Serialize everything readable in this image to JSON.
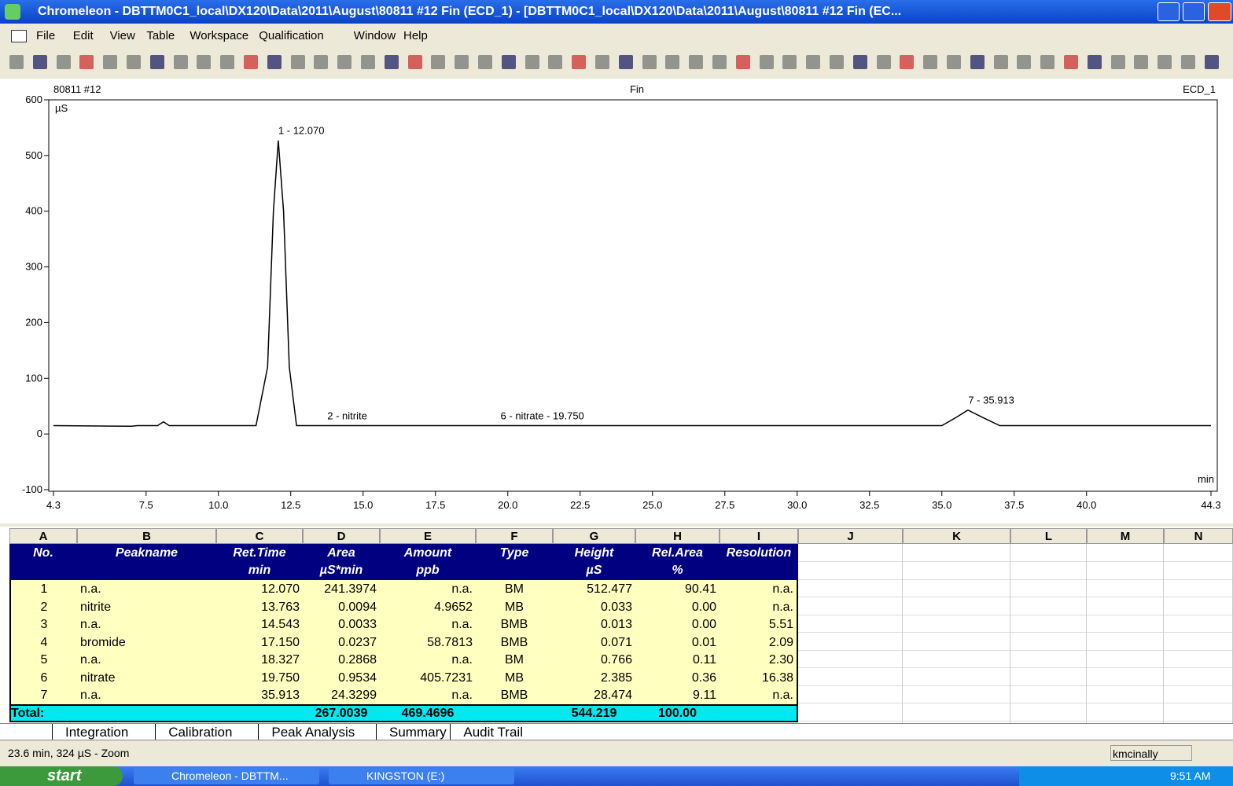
{
  "window": {
    "title": "Chromeleon - DBTTM0C1_local\\DX120\\Data\\2011\\August\\80811 #12 Fin (ECD_1) - [DBTTM0C1_local\\DX120\\Data\\2011\\August\\80811 #12 Fin (EC...",
    "menu": [
      "File",
      "Edit",
      "View",
      "Table",
      "Workspace",
      "Qualification",
      "Window",
      "Help"
    ]
  },
  "chromatogram": {
    "sample": "80811 #12",
    "program": "Fin",
    "channel": "ECD_1",
    "y_unit": "µS",
    "x_unit": "min",
    "xlim": [
      4.3,
      44.3
    ],
    "xticks": [
      4.3,
      7.5,
      {
        "value": 10,
        "label": "10.0"
      },
      12.5,
      {
        "value": 15,
        "label": "15.0"
      },
      17.5,
      {
        "value": 20,
        "label": "20.0"
      },
      22.5,
      {
        "value": 25,
        "label": "25.0"
      },
      27.5,
      {
        "value": 30,
        "label": "30.0"
      },
      32.5,
      {
        "value": 35,
        "label": "35.0"
      },
      37.5,
      {
        "value": 40,
        "label": "40.0"
      },
      44.3
    ],
    "ylim": [
      -100,
      600
    ],
    "yticks": [
      -100,
      0,
      100,
      200,
      300,
      400,
      500,
      600
    ],
    "trace": {
      "x": [
        4.3,
        6.8,
        7.0,
        7.2,
        7.9,
        8.1,
        8.3,
        11.3,
        11.7,
        11.9,
        12.07,
        12.25,
        12.45,
        12.7,
        35.0,
        35.5,
        35.9,
        36.4,
        37.0,
        44.3
      ],
      "y": [
        15,
        14,
        14,
        15,
        15,
        22,
        15,
        15,
        120,
        400,
        527,
        400,
        120,
        15,
        15,
        30,
        43,
        30,
        15,
        15
      ]
    },
    "peak_labels": [
      {
        "text": "1 - 12.070",
        "x": 12.07,
        "y": 527
      },
      {
        "text": "2 - nitrite",
        "x": 13.763,
        "y": 15
      },
      {
        "text": "6 - nitrate - 19.750",
        "x": 19.75,
        "y": 15
      },
      {
        "text": "7 - 35.913",
        "x": 35.913,
        "y": 43
      }
    ]
  },
  "table": {
    "columns": [
      "A",
      "B",
      "C",
      "D",
      "E",
      "F",
      "G",
      "H",
      "I",
      "J",
      "K",
      "L",
      "M",
      "N"
    ],
    "header": [
      {
        "title": "No."
      },
      {
        "title": "Peakname"
      },
      {
        "title": "Ret.Time",
        "unit": "min"
      },
      {
        "title": "Area",
        "unit": "µS*min"
      },
      {
        "title": "Amount",
        "unit": "ppb"
      },
      {
        "title": "Type"
      },
      {
        "title": "Height",
        "unit": "µS"
      },
      {
        "title": "Rel.Area",
        "unit": "%"
      },
      {
        "title": "Resolution"
      }
    ],
    "rows": [
      [
        "1",
        "n.a.",
        "12.070",
        "241.3974",
        "n.a.",
        "BM",
        "512.477",
        "90.41",
        "n.a."
      ],
      [
        "2",
        "nitrite",
        "13.763",
        "0.0094",
        "4.9652",
        "MB",
        "0.033",
        "0.00",
        "n.a."
      ],
      [
        "3",
        "n.a.",
        "14.543",
        "0.0033",
        "n.a.",
        "BMB",
        "0.013",
        "0.00",
        "5.51"
      ],
      [
        "4",
        "bromide",
        "17.150",
        "0.0237",
        "58.7813",
        "BMB",
        "0.071",
        "0.01",
        "2.09"
      ],
      [
        "5",
        "n.a.",
        "18.327",
        "0.2868",
        "n.a.",
        "BM",
        "0.766",
        "0.11",
        "2.30"
      ],
      [
        "6",
        "nitrate",
        "19.750",
        "0.9534",
        "405.7231",
        "MB",
        "2.385",
        "0.36",
        "16.38"
      ],
      [
        "7",
        "n.a.",
        "35.913",
        "24.3299",
        "n.a.",
        "BMB",
        "28.474",
        "9.11",
        "n.a."
      ]
    ],
    "total": {
      "label": "Total:",
      "area": "267.0039",
      "amount": "469.4696",
      "height": "544.219",
      "rel_area": "100.00"
    }
  },
  "tabs": [
    "Integration",
    "Calibration",
    "Peak Analysis",
    "Summary",
    "Audit Trail"
  ],
  "status": {
    "text": "23.6 min, 324 µS - Zoom",
    "user": "kmcinally"
  },
  "taskbar": {
    "start": "start",
    "items": [
      "Chromeleon - DBTTM...",
      "KINGSTON (E:)"
    ],
    "clock": "9:51 AM"
  }
}
